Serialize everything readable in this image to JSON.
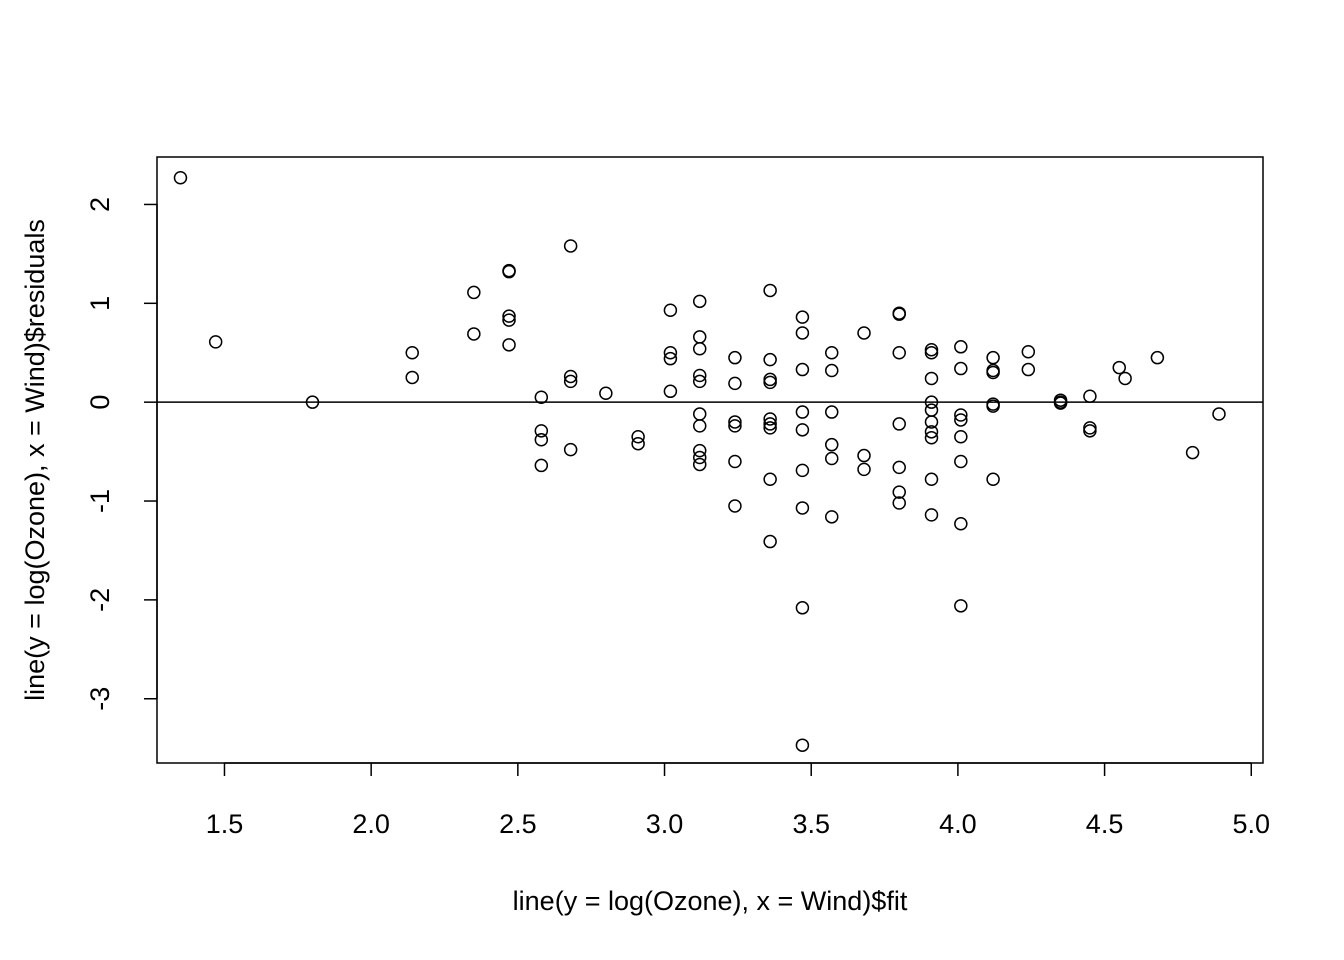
{
  "chart_data": {
    "type": "scatter",
    "title": "",
    "xlabel": "line(y = log(Ozone), x = Wind)$fit",
    "ylabel": "line(y = log(Ozone), x = Wind)$residuals",
    "xlim": [
      1.27,
      5.04
    ],
    "ylim": [
      -3.65,
      2.48
    ],
    "xticks": [
      1.5,
      2.0,
      2.5,
      3.0,
      3.5,
      4.0,
      4.5,
      5.0
    ],
    "xtick_labels": [
      "1.5",
      "2.0",
      "2.5",
      "3.0",
      "3.5",
      "4.0",
      "4.5",
      "5.0"
    ],
    "yticks": [
      -3,
      -2,
      -1,
      0,
      1,
      2
    ],
    "ytick_labels": [
      "-3",
      "-2",
      "-1",
      "0",
      "1",
      "2"
    ],
    "reference_line_y": 0,
    "marker": "open-circle",
    "grid": false,
    "points": [
      [
        1.35,
        2.27
      ],
      [
        1.47,
        0.61
      ],
      [
        1.8,
        0.0
      ],
      [
        2.14,
        0.5
      ],
      [
        2.14,
        0.25
      ],
      [
        2.35,
        1.11
      ],
      [
        2.35,
        0.69
      ],
      [
        2.47,
        1.33
      ],
      [
        2.47,
        1.32
      ],
      [
        2.47,
        0.87
      ],
      [
        2.47,
        0.83
      ],
      [
        2.47,
        0.58
      ],
      [
        2.58,
        0.05
      ],
      [
        2.58,
        -0.29
      ],
      [
        2.58,
        -0.38
      ],
      [
        2.58,
        -0.64
      ],
      [
        2.68,
        1.58
      ],
      [
        2.68,
        0.26
      ],
      [
        2.68,
        0.21
      ],
      [
        2.68,
        -0.48
      ],
      [
        2.8,
        0.09
      ],
      [
        2.91,
        -0.35
      ],
      [
        2.91,
        -0.42
      ],
      [
        3.02,
        0.93
      ],
      [
        3.02,
        0.5
      ],
      [
        3.02,
        0.44
      ],
      [
        3.02,
        0.11
      ],
      [
        3.12,
        1.02
      ],
      [
        3.12,
        0.66
      ],
      [
        3.12,
        0.54
      ],
      [
        3.12,
        0.27
      ],
      [
        3.12,
        0.21
      ],
      [
        3.12,
        -0.12
      ],
      [
        3.12,
        -0.24
      ],
      [
        3.12,
        -0.49
      ],
      [
        3.12,
        -0.56
      ],
      [
        3.12,
        -0.63
      ],
      [
        3.24,
        0.45
      ],
      [
        3.24,
        0.19
      ],
      [
        3.24,
        -0.2
      ],
      [
        3.24,
        -0.24
      ],
      [
        3.24,
        -0.6
      ],
      [
        3.24,
        -1.05
      ],
      [
        3.36,
        1.13
      ],
      [
        3.36,
        0.43
      ],
      [
        3.36,
        0.23
      ],
      [
        3.36,
        0.2
      ],
      [
        3.36,
        -0.17
      ],
      [
        3.36,
        -0.22
      ],
      [
        3.36,
        -0.26
      ],
      [
        3.36,
        -0.78
      ],
      [
        3.36,
        -1.41
      ],
      [
        3.47,
        0.86
      ],
      [
        3.47,
        0.7
      ],
      [
        3.47,
        0.33
      ],
      [
        3.47,
        -0.1
      ],
      [
        3.47,
        -0.28
      ],
      [
        3.47,
        -0.69
      ],
      [
        3.47,
        -1.07
      ],
      [
        3.47,
        -2.08
      ],
      [
        3.47,
        -3.47
      ],
      [
        3.57,
        0.5
      ],
      [
        3.57,
        0.32
      ],
      [
        3.57,
        -0.1
      ],
      [
        3.57,
        -0.43
      ],
      [
        3.57,
        -0.57
      ],
      [
        3.57,
        -1.16
      ],
      [
        3.68,
        0.7
      ],
      [
        3.68,
        -0.54
      ],
      [
        3.68,
        -0.68
      ],
      [
        3.8,
        0.9
      ],
      [
        3.8,
        0.89
      ],
      [
        3.8,
        0.5
      ],
      [
        3.8,
        -0.22
      ],
      [
        3.8,
        -0.66
      ],
      [
        3.8,
        -0.91
      ],
      [
        3.8,
        -1.02
      ],
      [
        3.91,
        0.53
      ],
      [
        3.91,
        0.5
      ],
      [
        3.91,
        0.24
      ],
      [
        3.91,
        0.0
      ],
      [
        3.91,
        -0.08
      ],
      [
        3.91,
        -0.2
      ],
      [
        3.91,
        -0.3
      ],
      [
        3.91,
        -0.36
      ],
      [
        3.91,
        -0.78
      ],
      [
        3.91,
        -1.14
      ],
      [
        4.01,
        0.56
      ],
      [
        4.01,
        0.34
      ],
      [
        4.01,
        -0.13
      ],
      [
        4.01,
        -0.18
      ],
      [
        4.01,
        -0.35
      ],
      [
        4.01,
        -0.6
      ],
      [
        4.01,
        -1.23
      ],
      [
        4.01,
        -2.06
      ],
      [
        4.12,
        0.45
      ],
      [
        4.12,
        0.32
      ],
      [
        4.12,
        0.3
      ],
      [
        4.12,
        -0.02
      ],
      [
        4.12,
        -0.04
      ],
      [
        4.12,
        -0.78
      ],
      [
        4.24,
        0.51
      ],
      [
        4.24,
        0.33
      ],
      [
        4.35,
        0.02
      ],
      [
        4.35,
        0.0
      ],
      [
        4.35,
        -0.01
      ],
      [
        4.45,
        0.06
      ],
      [
        4.45,
        -0.26
      ],
      [
        4.45,
        -0.29
      ],
      [
        4.55,
        0.35
      ],
      [
        4.57,
        0.24
      ],
      [
        4.68,
        0.45
      ],
      [
        4.8,
        -0.51
      ],
      [
        4.89,
        -0.12
      ]
    ]
  }
}
